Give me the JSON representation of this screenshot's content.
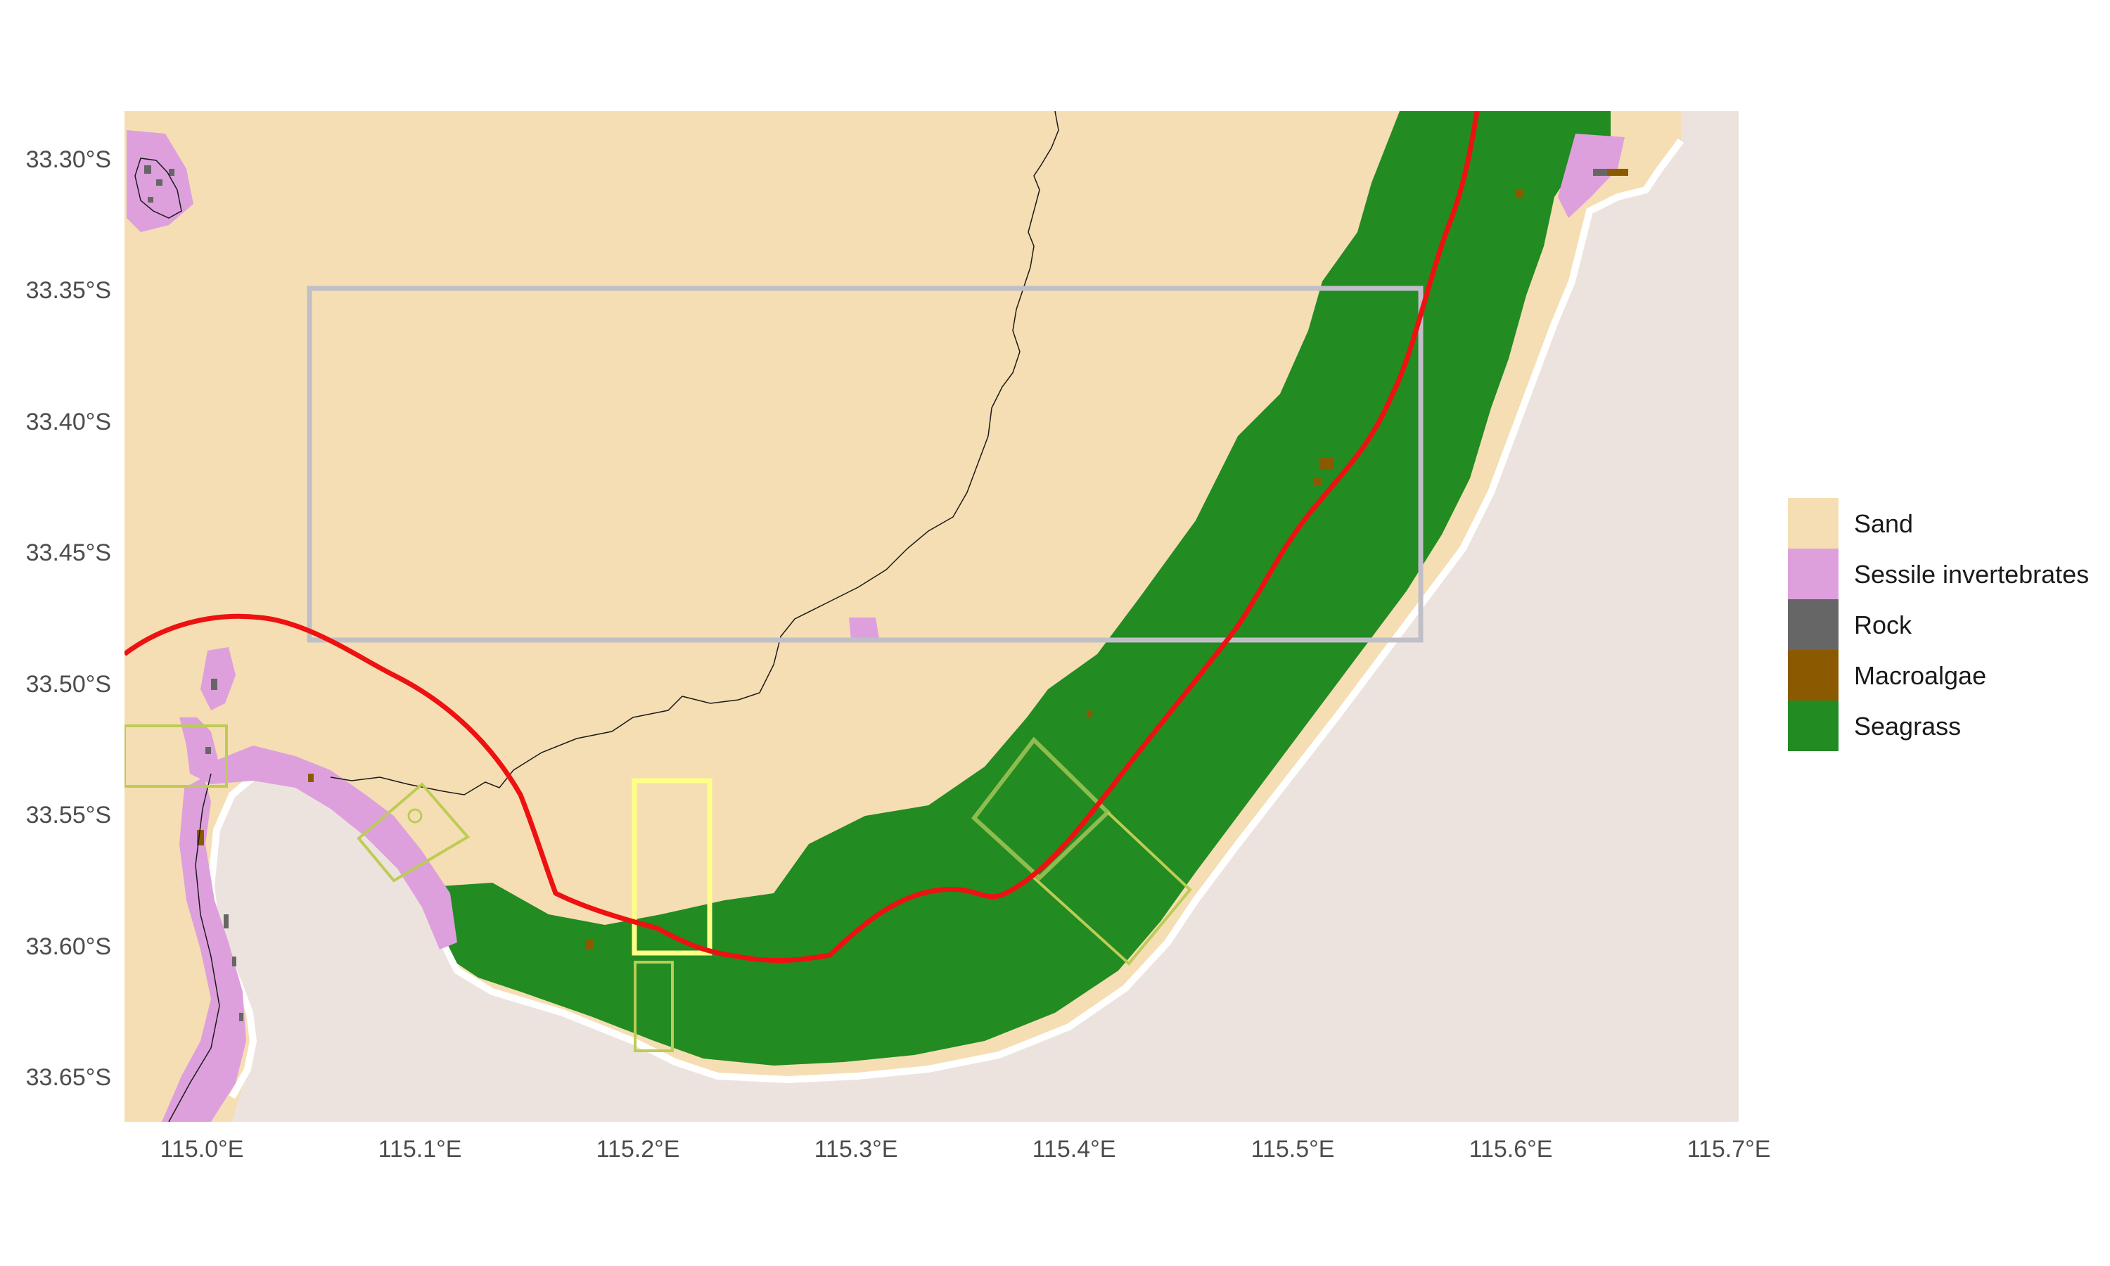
{
  "map": {
    "x_ticks": [
      "115.0°E",
      "115.1°E",
      "115.2°E",
      "115.3°E",
      "115.4°E",
      "115.5°E",
      "115.6°E",
      "115.7°E"
    ],
    "y_ticks": [
      "33.30°S",
      "33.35°S",
      "33.40°S",
      "33.45°S",
      "33.50°S",
      "33.55°S",
      "33.60°S",
      "33.65°S"
    ],
    "x_range": [
      114.965,
      115.7
    ],
    "y_range": [
      -33.666,
      -33.282
    ],
    "colors": {
      "land": "#ede3de",
      "sand": "#f5deb3",
      "sessile_invertebrates": "#dda0dd",
      "rock": "#666666",
      "macroalgae": "#8b5a00",
      "seagrass": "#228b22",
      "route_line": "#ee1111",
      "grey_box": "#c0bfc8",
      "yellow_box": "#ffff88",
      "olive_outline": "#bccc55",
      "sanctuary_outline": "#8fbc4f",
      "depth_contour": "#1a1a1a"
    }
  },
  "legend": {
    "items": [
      {
        "label": "Sand",
        "color": "#f5deb3"
      },
      {
        "label": "Sessile invertebrates",
        "color": "#dda0dd"
      },
      {
        "label": "Rock",
        "color": "#666666"
      },
      {
        "label": "Macroalgae",
        "color": "#8b5a00"
      },
      {
        "label": "Seagrass",
        "color": "#228b22"
      }
    ]
  }
}
